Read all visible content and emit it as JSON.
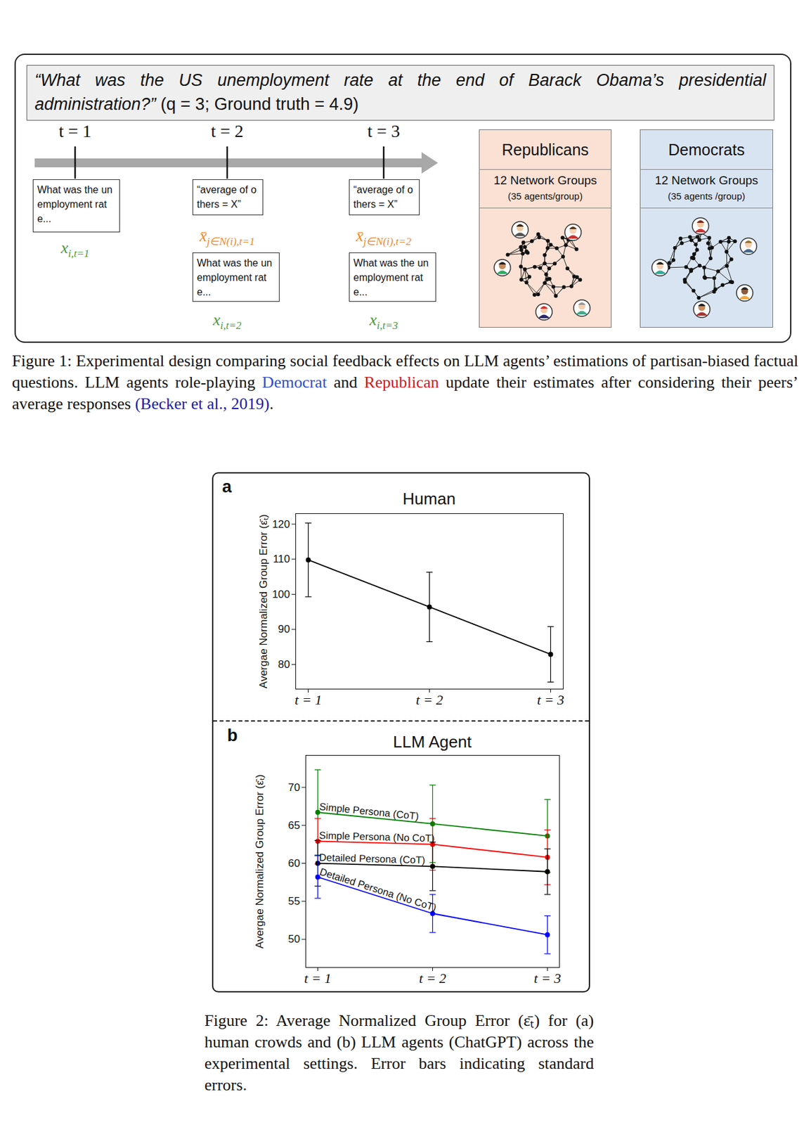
{
  "figure1": {
    "question": "“What was the US unemployment rate at the end of Barack Obama’s presidential administration?”",
    "question_meta": "(q = 3; Ground truth = 4.9)",
    "timeline": [
      {
        "label": "t = 1",
        "steps": [
          {
            "kind": "own",
            "box": "What was the unemployment rate...",
            "symbol": "x",
            "subscript": "i,t=1"
          }
        ]
      },
      {
        "label": "t = 2",
        "steps": [
          {
            "kind": "peer",
            "box": "“average of others = X”",
            "symbol": "x̄",
            "subscript": "j∈N(i),t=1"
          },
          {
            "kind": "own",
            "box": "What was the unemployment rate...",
            "symbol": "x",
            "subscript": "i,t=2"
          }
        ]
      },
      {
        "label": "t = 3",
        "steps": [
          {
            "kind": "peer",
            "box": "“average of others = X”",
            "symbol": "x̄",
            "subscript": "j∈N(i),t=2"
          },
          {
            "kind": "own",
            "box": "What was the unemployment rate...",
            "symbol": "x",
            "subscript": "i,t=3"
          }
        ]
      }
    ],
    "groups": [
      {
        "name": "Republicans",
        "count": "12 Network Groups",
        "size": "(35 agents/group)",
        "color": "#fbe1d4"
      },
      {
        "name": "Democrats",
        "count": "12 Network Groups",
        "size": "(35 agents /group)",
        "color": "#d9e4f2"
      }
    ]
  },
  "figure1_caption": [
    {
      "text": "Figure 1: Experimental design comparing social feedback effects on LLM agents’ estimations of partisan-biased factual questions. LLM agents role-playing "
    },
    {
      "text": "Democrat",
      "color": "#2f4fd0"
    },
    {
      "text": " and "
    },
    {
      "text": "Republican",
      "color": "#d01a1a"
    },
    {
      "text": " update their estimates after considering their peers’ average responses "
    },
    {
      "text": "(Becker et al., 2019)",
      "color": "#1c1ca8"
    },
    {
      "text": "."
    }
  ],
  "chart_data": [
    {
      "panel": "a",
      "type": "line",
      "title": "Human",
      "y_label": "Avergae Normalized Group Error (ε̄ₜ)",
      "categories": [
        "t = 1",
        "t = 2",
        "t = 3"
      ],
      "series": [
        {
          "color": "black",
          "marker": "circle",
          "values": [
            109.8,
            96.4,
            82.9
          ],
          "errors": [
            10.5,
            9.9,
            7.9
          ]
        }
      ],
      "ylim": [
        73,
        123
      ],
      "yticks": [
        80,
        90,
        100,
        110,
        120
      ]
    },
    {
      "panel": "b",
      "type": "line",
      "title": "LLM Agent",
      "y_label": "Avergae Normalized Group Error (ε̄ₜ)",
      "categories": [
        "t = 1",
        "t = 2",
        "t = 3"
      ],
      "series": [
        {
          "name": "Simple Persona (CoT)",
          "color": "green",
          "marker": "circle",
          "values": [
            66.7,
            65.2,
            63.6
          ],
          "errors": [
            5.6,
            5.1,
            4.8
          ]
        },
        {
          "name": "Simple Persona (No CoT)",
          "color": "red",
          "marker": "circle",
          "values": [
            62.9,
            62.5,
            60.8
          ],
          "errors": [
            3.0,
            3.4,
            3.6
          ]
        },
        {
          "name": "Detailed Persona (CoT)",
          "color": "black",
          "marker": "circle",
          "values": [
            60.0,
            59.6,
            58.9
          ],
          "errors": [
            3.0,
            3.2,
            3.0
          ]
        },
        {
          "name": "Detailed Persona (No CoT)",
          "color": "blue",
          "marker": "circle",
          "values": [
            58.2,
            53.4,
            50.6
          ],
          "errors": [
            2.8,
            2.5,
            2.5
          ]
        }
      ],
      "ylim": [
        46.3,
        74.2
      ],
      "yticks": [
        50,
        55,
        60,
        65,
        70
      ]
    }
  ],
  "figure2_caption": "Figure 2: Average Normalized Group Error (ε̄ₜ) for (a) human crowds and (b) LLM agents (ChatGPT) across the experimental settings. Error bars indicating standard errors."
}
